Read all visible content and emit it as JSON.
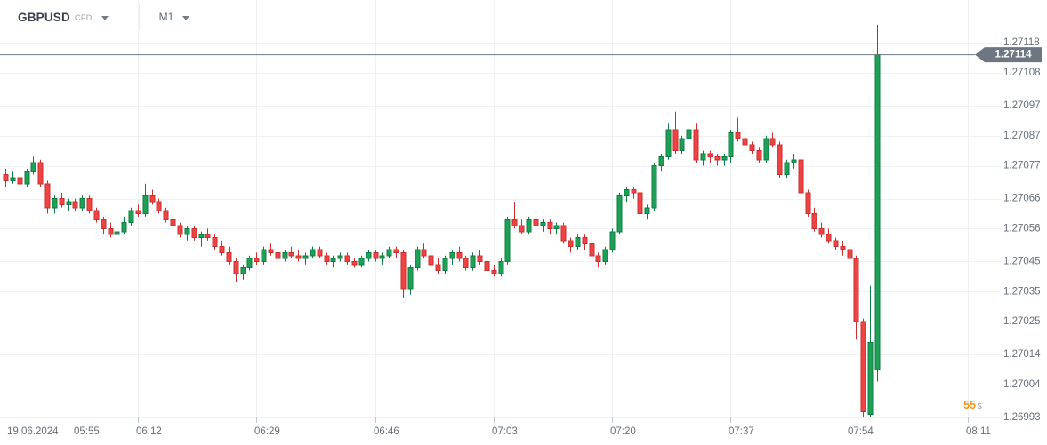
{
  "header": {
    "symbol": "GBPUSD",
    "symbol_type": "CFD",
    "timeframe": "M1"
  },
  "chart_data": {
    "type": "candlestick",
    "symbol": "GBPUSD",
    "market": "CFD",
    "interval": "M1",
    "session_date": "19.06.2024",
    "current_price": "1.27114",
    "countdown": {
      "value": "55",
      "unit": "s"
    },
    "colors": {
      "up": "#1ea157",
      "up_border": "#0e7d43",
      "down": "#f04343",
      "down_border": "#c92f2f",
      "grid": "#f0f1f3",
      "tick": "#c3c9ce",
      "axis_text": "#666f78",
      "price_line": "#6e7781",
      "tag_bg": "#6e7781",
      "tag_text": "#ffffff",
      "countdown": "#f7931a",
      "countdown_unit": "#9aa1a8",
      "background": "#ffffff"
    },
    "y_axis": {
      "side": "right",
      "labels": [
        1.27118,
        1.27108,
        1.27097,
        1.27087,
        1.27077,
        1.27066,
        1.27056,
        1.27045,
        1.27035,
        1.27025,
        1.27014,
        1.27004,
        1.26993
      ]
    },
    "x_axis": {
      "labels": [
        "19.06.2024 05:55",
        "06:12",
        "06:29",
        "06:46",
        "07:03",
        "07:20",
        "07:37",
        "07:54",
        "08:11"
      ]
    },
    "candle_columns": [
      "time",
      "open",
      "high",
      "low",
      "close"
    ],
    "candles": [
      [
        "05:53",
        1.27074,
        1.27076,
        1.2707,
        1.27072
      ],
      [
        "05:54",
        1.27072,
        1.27075,
        1.27071,
        1.27073
      ],
      [
        "05:55",
        1.27073,
        1.27074,
        1.27069,
        1.27071
      ],
      [
        "05:56",
        1.27071,
        1.27076,
        1.2707,
        1.27075
      ],
      [
        "05:57",
        1.27075,
        1.2708,
        1.27074,
        1.27078
      ],
      [
        "05:58",
        1.27078,
        1.27079,
        1.2707,
        1.27071
      ],
      [
        "05:59",
        1.27071,
        1.27072,
        1.27061,
        1.27063
      ],
      [
        "06:00",
        1.27063,
        1.27067,
        1.27061,
        1.27066
      ],
      [
        "06:01",
        1.27066,
        1.27068,
        1.27063,
        1.27064
      ],
      [
        "06:02",
        1.27064,
        1.27066,
        1.27062,
        1.27065
      ],
      [
        "06:03",
        1.27065,
        1.27066,
        1.27062,
        1.27063
      ],
      [
        "06:04",
        1.27063,
        1.27067,
        1.27062,
        1.27066
      ],
      [
        "06:05",
        1.27066,
        1.27067,
        1.27061,
        1.27062
      ],
      [
        "06:06",
        1.27062,
        1.27063,
        1.27058,
        1.27059
      ],
      [
        "06:07",
        1.27059,
        1.2706,
        1.27054,
        1.27056
      ],
      [
        "06:08",
        1.27056,
        1.27058,
        1.27053,
        1.27054
      ],
      [
        "06:09",
        1.27054,
        1.27057,
        1.27052,
        1.27055
      ],
      [
        "06:10",
        1.27055,
        1.2706,
        1.27054,
        1.27058
      ],
      [
        "06:11",
        1.27058,
        1.27063,
        1.27057,
        1.27062
      ],
      [
        "06:12",
        1.27062,
        1.27064,
        1.2706,
        1.27061
      ],
      [
        "06:13",
        1.27061,
        1.27071,
        1.2706,
        1.27067
      ],
      [
        "06:14",
        1.27067,
        1.27069,
        1.27064,
        1.27065
      ],
      [
        "06:15",
        1.27065,
        1.27066,
        1.27061,
        1.27062
      ],
      [
        "06:16",
        1.27062,
        1.27063,
        1.27058,
        1.27059
      ],
      [
        "06:17",
        1.27059,
        1.27061,
        1.27056,
        1.27057
      ],
      [
        "06:18",
        1.27057,
        1.27058,
        1.27053,
        1.27054
      ],
      [
        "06:19",
        1.27054,
        1.27057,
        1.27052,
        1.27056
      ],
      [
        "06:20",
        1.27056,
        1.27057,
        1.27052,
        1.27053
      ],
      [
        "06:21",
        1.27053,
        1.27055,
        1.2705,
        1.27054
      ],
      [
        "06:22",
        1.27054,
        1.27056,
        1.27052,
        1.27053
      ],
      [
        "06:23",
        1.27053,
        1.27054,
        1.27049,
        1.2705
      ],
      [
        "06:24",
        1.2705,
        1.27052,
        1.27047,
        1.27048
      ],
      [
        "06:25",
        1.27048,
        1.2705,
        1.27044,
        1.27045
      ],
      [
        "06:26",
        1.27045,
        1.27046,
        1.27038,
        1.27041
      ],
      [
        "06:27",
        1.27041,
        1.27044,
        1.27039,
        1.27043
      ],
      [
        "06:28",
        1.27043,
        1.27047,
        1.27042,
        1.27046
      ],
      [
        "06:29",
        1.27046,
        1.27048,
        1.27044,
        1.27045
      ],
      [
        "06:30",
        1.27045,
        1.2705,
        1.27044,
        1.27049
      ],
      [
        "06:31",
        1.27049,
        1.27051,
        1.27047,
        1.27048
      ],
      [
        "06:32",
        1.27048,
        1.2705,
        1.27045,
        1.27046
      ],
      [
        "06:33",
        1.27046,
        1.27049,
        1.27045,
        1.27048
      ],
      [
        "06:34",
        1.27048,
        1.2705,
        1.27046,
        1.27047
      ],
      [
        "06:35",
        1.27047,
        1.27049,
        1.27045,
        1.27046
      ],
      [
        "06:36",
        1.27046,
        1.27048,
        1.27044,
        1.27047
      ],
      [
        "06:37",
        1.27047,
        1.2705,
        1.27046,
        1.27049
      ],
      [
        "06:38",
        1.27049,
        1.2705,
        1.27046,
        1.27047
      ],
      [
        "06:39",
        1.27047,
        1.27048,
        1.27044,
        1.27045
      ],
      [
        "06:40",
        1.27045,
        1.27047,
        1.27043,
        1.27046
      ],
      [
        "06:41",
        1.27046,
        1.27048,
        1.27045,
        1.27047
      ],
      [
        "06:42",
        1.27047,
        1.27048,
        1.27044,
        1.27045
      ],
      [
        "06:43",
        1.27045,
        1.27046,
        1.27043,
        1.27044
      ],
      [
        "06:44",
        1.27044,
        1.27047,
        1.27043,
        1.27046
      ],
      [
        "06:45",
        1.27046,
        1.27049,
        1.27045,
        1.27048
      ],
      [
        "06:46",
        1.27048,
        1.27049,
        1.27045,
        1.27046
      ],
      [
        "06:47",
        1.27046,
        1.27048,
        1.27044,
        1.27047
      ],
      [
        "06:48",
        1.27047,
        1.2705,
        1.27046,
        1.27049
      ],
      [
        "06:49",
        1.27049,
        1.2705,
        1.27046,
        1.27048
      ],
      [
        "06:50",
        1.27048,
        1.27049,
        1.27033,
        1.27036
      ],
      [
        "06:51",
        1.27036,
        1.27044,
        1.27034,
        1.27043
      ],
      [
        "06:52",
        1.27043,
        1.2705,
        1.27042,
        1.27049
      ],
      [
        "06:53",
        1.27049,
        1.27051,
        1.27046,
        1.27047
      ],
      [
        "06:54",
        1.27047,
        1.27048,
        1.27043,
        1.27044
      ],
      [
        "06:55",
        1.27044,
        1.27046,
        1.27041,
        1.27042
      ],
      [
        "06:56",
        1.27042,
        1.27047,
        1.27041,
        1.27046
      ],
      [
        "06:57",
        1.27046,
        1.27049,
        1.27044,
        1.27048
      ],
      [
        "06:58",
        1.27048,
        1.2705,
        1.27045,
        1.27046
      ],
      [
        "06:59",
        1.27046,
        1.27047,
        1.27042,
        1.27043
      ],
      [
        "07:00",
        1.27043,
        1.27048,
        1.27042,
        1.27047
      ],
      [
        "07:01",
        1.27047,
        1.27049,
        1.27044,
        1.27045
      ],
      [
        "07:02",
        1.27045,
        1.27046,
        1.27041,
        1.27042
      ],
      [
        "07:03",
        1.27042,
        1.27044,
        1.2704,
        1.27041
      ],
      [
        "07:04",
        1.27041,
        1.27046,
        1.2704,
        1.27045
      ],
      [
        "07:05",
        1.27045,
        1.2706,
        1.27044,
        1.27059
      ],
      [
        "07:06",
        1.27059,
        1.27065,
        1.27056,
        1.27057
      ],
      [
        "07:07",
        1.27057,
        1.27059,
        1.27054,
        1.27055
      ],
      [
        "07:08",
        1.27055,
        1.2706,
        1.27054,
        1.27059
      ],
      [
        "07:09",
        1.27059,
        1.27061,
        1.27055,
        1.27057
      ],
      [
        "07:10",
        1.27057,
        1.27059,
        1.27055,
        1.27058
      ],
      [
        "07:11",
        1.27058,
        1.27059,
        1.27054,
        1.27056
      ],
      [
        "07:12",
        1.27056,
        1.27058,
        1.27054,
        1.27057
      ],
      [
        "07:13",
        1.27057,
        1.27058,
        1.27051,
        1.27052
      ],
      [
        "07:14",
        1.27052,
        1.27053,
        1.27048,
        1.2705
      ],
      [
        "07:15",
        1.2705,
        1.27054,
        1.27049,
        1.27053
      ],
      [
        "07:16",
        1.27053,
        1.27054,
        1.27049,
        1.27051
      ],
      [
        "07:17",
        1.27051,
        1.27052,
        1.27046,
        1.27047
      ],
      [
        "07:18",
        1.27047,
        1.27048,
        1.27043,
        1.27045
      ],
      [
        "07:19",
        1.27045,
        1.2705,
        1.27044,
        1.27049
      ],
      [
        "07:20",
        1.27049,
        1.27056,
        1.27048,
        1.27055
      ],
      [
        "07:21",
        1.27055,
        1.27068,
        1.27054,
        1.27067
      ],
      [
        "07:22",
        1.27067,
        1.2707,
        1.27065,
        1.27069
      ],
      [
        "07:23",
        1.27069,
        1.2707,
        1.27066,
        1.27068
      ],
      [
        "07:24",
        1.27068,
        1.27069,
        1.2706,
        1.27061
      ],
      [
        "07:25",
        1.27061,
        1.27064,
        1.27059,
        1.27063
      ],
      [
        "07:26",
        1.27063,
        1.27078,
        1.27062,
        1.27077
      ],
      [
        "07:27",
        1.27077,
        1.27081,
        1.27075,
        1.2708
      ],
      [
        "07:28",
        1.2708,
        1.27091,
        1.27079,
        1.27089
      ],
      [
        "07:29",
        1.27089,
        1.27095,
        1.27081,
        1.27082
      ],
      [
        "07:30",
        1.27082,
        1.27087,
        1.27081,
        1.27086
      ],
      [
        "07:31",
        1.27086,
        1.27091,
        1.27084,
        1.27089
      ],
      [
        "07:32",
        1.27089,
        1.27091,
        1.27078,
        1.27079
      ],
      [
        "07:33",
        1.27079,
        1.27082,
        1.27077,
        1.27081
      ],
      [
        "07:34",
        1.27081,
        1.27082,
        1.27078,
        1.2708
      ],
      [
        "07:35",
        1.2708,
        1.27081,
        1.27077,
        1.27079
      ],
      [
        "07:36",
        1.27079,
        1.27081,
        1.27077,
        1.2708
      ],
      [
        "07:37",
        1.2708,
        1.27089,
        1.27078,
        1.27088
      ],
      [
        "07:38",
        1.27088,
        1.27093,
        1.27085,
        1.27086
      ],
      [
        "07:39",
        1.27086,
        1.27087,
        1.27083,
        1.27084
      ],
      [
        "07:40",
        1.27084,
        1.27085,
        1.27081,
        1.27082
      ],
      [
        "07:41",
        1.27082,
        1.27083,
        1.27078,
        1.27079
      ],
      [
        "07:42",
        1.27079,
        1.27087,
        1.27078,
        1.27086
      ],
      [
        "07:43",
        1.27086,
        1.27088,
        1.27083,
        1.27084
      ],
      [
        "07:44",
        1.27084,
        1.27085,
        1.27073,
        1.27074
      ],
      [
        "07:45",
        1.27074,
        1.27079,
        1.27073,
        1.27078
      ],
      [
        "07:46",
        1.27078,
        1.27081,
        1.27076,
        1.27079
      ],
      [
        "07:47",
        1.27079,
        1.2708,
        1.27066,
        1.27068
      ],
      [
        "07:48",
        1.27068,
        1.27069,
        1.2706,
        1.27061
      ],
      [
        "07:49",
        1.27061,
        1.27063,
        1.27055,
        1.27056
      ],
      [
        "07:50",
        1.27056,
        1.27058,
        1.27053,
        1.27054
      ],
      [
        "07:51",
        1.27054,
        1.27056,
        1.27051,
        1.27052
      ],
      [
        "07:52",
        1.27052,
        1.27053,
        1.27049,
        1.2705
      ],
      [
        "07:53",
        1.2705,
        1.27052,
        1.27047,
        1.27049
      ],
      [
        "07:54",
        1.27049,
        1.2705,
        1.27045,
        1.27046
      ],
      [
        "07:55",
        1.27046,
        1.27047,
        1.27019,
        1.27025
      ],
      [
        "07:56",
        1.27025,
        1.27026,
        1.26993,
        1.26995
      ],
      [
        "07:57",
        1.26994,
        1.27037,
        1.26993,
        1.27018
      ],
      [
        "07:58",
        1.27009,
        1.27124,
        1.27005,
        1.27114
      ]
    ]
  }
}
